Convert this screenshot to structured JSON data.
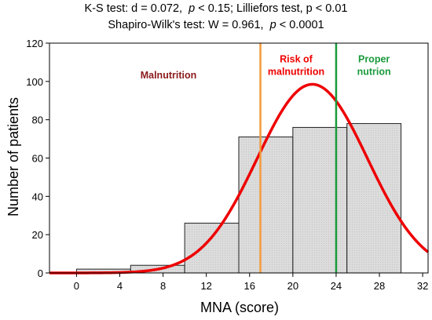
{
  "chart_data": {
    "type": "bar",
    "title_lines": [
      {
        "parts": [
          "K-S test: d = 0.072,  ",
          "p",
          " < 0.15; Lilliefors test, p < 0.01"
        ]
      },
      {
        "parts": [
          "Shapiro-Wilk's test: W = 0.961,  ",
          "p",
          " < 0.0001"
        ]
      }
    ],
    "xlabel": "MNA (score)",
    "ylabel": "Number of patients",
    "xlim": [
      -2.5,
      32.5
    ],
    "ylim": [
      0,
      120
    ],
    "x_ticks": [
      "0",
      "4",
      "8",
      "12",
      "16",
      "20",
      "24",
      "28",
      "32"
    ],
    "y_ticks": [
      "0",
      "20",
      "40",
      "60",
      "80",
      "100",
      "120"
    ],
    "bins": [
      {
        "x0": 0,
        "x1": 5,
        "value": 2
      },
      {
        "x0": 5,
        "x1": 10,
        "value": 4
      },
      {
        "x0": 10,
        "x1": 15,
        "value": 26
      },
      {
        "x0": 15,
        "x1": 20,
        "value": 71
      },
      {
        "x0": 20,
        "x1": 25,
        "value": 76
      },
      {
        "x0": 25,
        "x1": 30,
        "value": 78
      }
    ],
    "normal_curve": {
      "mean": 21.8,
      "sd": 5.1,
      "peak": 98.5,
      "color": "#ee0000"
    },
    "thresholds": [
      {
        "x": 17,
        "color": "#f39a3c"
      },
      {
        "x": 24,
        "color": "#1a9a3c"
      }
    ],
    "regions": [
      {
        "lines": [
          "Malnutrition"
        ],
        "color": "#8b1a1a",
        "x": 8.5,
        "y": 101.5
      },
      {
        "lines": [
          "Risk of",
          "malnutrition"
        ],
        "color": "#ee0000",
        "x": 20.3,
        "y": 110
      },
      {
        "lines": [
          "Proper",
          "nutrion"
        ],
        "color": "#1a9a3c",
        "x": 27.5,
        "y": 110
      }
    ],
    "bar_fill": "#dcdcdc",
    "grid": false
  }
}
